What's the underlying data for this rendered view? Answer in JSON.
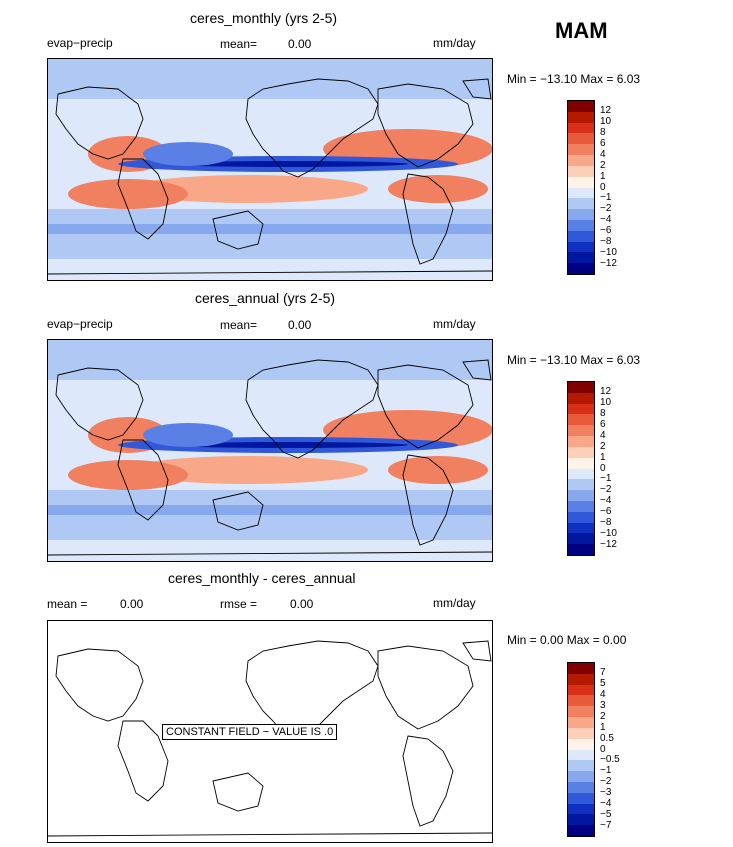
{
  "season": "MAM",
  "panels": [
    {
      "title": "ceres_monthly (yrs 2-5)",
      "left_label": "evap−precip",
      "mean_label": "mean=",
      "mean_value": "0.00",
      "units": "mm/day",
      "min_max": "Min = −13.10  Max =    6.03"
    },
    {
      "title": "ceres_annual (yrs 2-5)",
      "left_label": "evap−precip",
      "mean_label": "mean=",
      "mean_value": "0.00",
      "units": "mm/day",
      "min_max": "Min = −13.10  Max =    6.03"
    },
    {
      "title": "ceres_monthly - ceres_annual",
      "mean_label": "mean =",
      "mean_value": "0.00",
      "rmse_label": "rmse =",
      "rmse_value": "0.00",
      "units": "mm/day",
      "min_max": "Min =    0.00  Max =    0.00",
      "message": "CONSTANT FIELD − VALUE IS .0"
    }
  ],
  "colorbar_main": {
    "levels": [
      "12",
      "10",
      "8",
      "6",
      "4",
      "2",
      "1",
      "0",
      "−1",
      "−2",
      "−4",
      "−6",
      "−8",
      "−10",
      "−12"
    ],
    "colors": [
      "#800000",
      "#b31a00",
      "#d83018",
      "#e85a3c",
      "#f08060",
      "#f8a888",
      "#fcd0b8",
      "#fff2e6",
      "#dde8fa",
      "#b0c8f4",
      "#88a8ee",
      "#5a80e6",
      "#3058d8",
      "#1030c0",
      "#0018a0",
      "#000080"
    ]
  },
  "colorbar_diff": {
    "levels": [
      "7",
      "5",
      "4",
      "3",
      "2",
      "1",
      "0.5",
      "0",
      "−0.5",
      "−1",
      "−2",
      "−3",
      "−4",
      "−5",
      "−7"
    ],
    "colors": [
      "#800000",
      "#b31a00",
      "#d83018",
      "#e85a3c",
      "#f08060",
      "#f8a888",
      "#fcd0b8",
      "#fff2e6",
      "#dde8fa",
      "#b0c8f4",
      "#88a8ee",
      "#5a80e6",
      "#3058d8",
      "#1030c0",
      "#0018a0",
      "#000080"
    ]
  },
  "chart_data": [
    {
      "type": "heatmap",
      "title": "ceres_monthly (yrs 2-5)",
      "variable": "evap−precip",
      "units": "mm/day",
      "mean": 0.0,
      "min": -13.1,
      "max": 6.03,
      "contour_levels": [
        -12,
        -10,
        -8,
        -6,
        -4,
        -2,
        -1,
        0,
        1,
        2,
        4,
        6,
        8,
        10,
        12
      ]
    },
    {
      "type": "heatmap",
      "title": "ceres_annual (yrs 2-5)",
      "variable": "evap−precip",
      "units": "mm/day",
      "mean": 0.0,
      "min": -13.1,
      "max": 6.03,
      "contour_levels": [
        -12,
        -10,
        -8,
        -6,
        -4,
        -2,
        -1,
        0,
        1,
        2,
        4,
        6,
        8,
        10,
        12
      ]
    },
    {
      "type": "heatmap",
      "title": "ceres_monthly - ceres_annual",
      "units": "mm/day",
      "mean": 0.0,
      "rmse": 0.0,
      "min": 0.0,
      "max": 0.0,
      "contour_levels": [
        -7,
        -5,
        -4,
        -3,
        -2,
        -1,
        -0.5,
        0,
        0.5,
        1,
        2,
        3,
        4,
        5,
        7
      ]
    }
  ]
}
